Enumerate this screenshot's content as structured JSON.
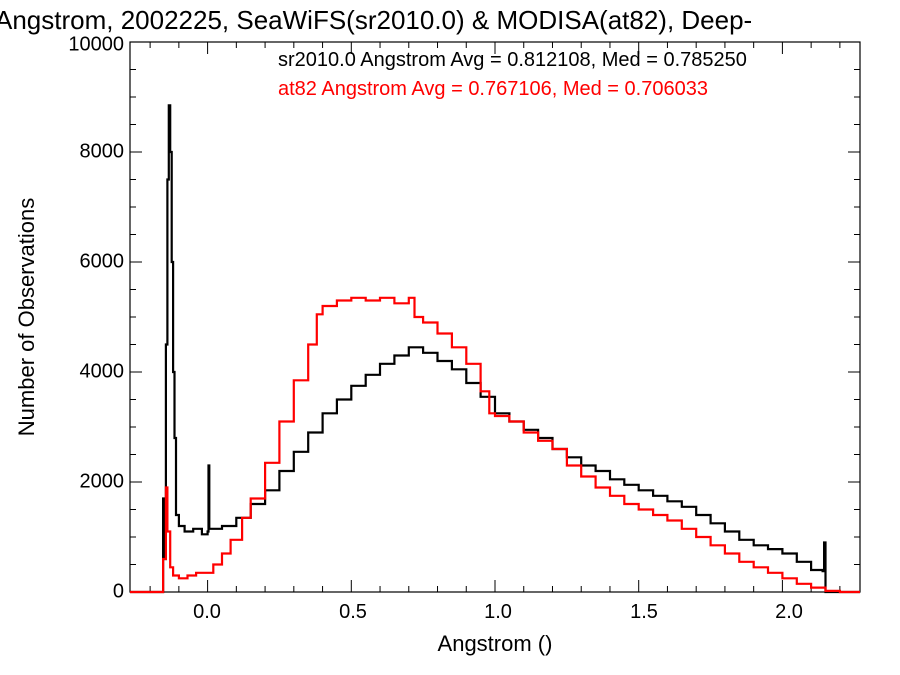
{
  "chart_data": {
    "type": "line",
    "title": "Angstrom, 2002225, SeaWiFS(sr2010.0) & MODISA(at82), Deep-",
    "xlabel": "Angstrom ()",
    "ylabel": "Number of Observations",
    "xlim": [
      -0.27,
      2.27
    ],
    "ylim": [
      0,
      10000
    ],
    "x_ticks": [
      "0.0",
      "0.5",
      "1.0",
      "1.5",
      "2.0"
    ],
    "y_ticks": [
      "0",
      "2000",
      "4000",
      "6000",
      "8000",
      "10000"
    ],
    "grid": false,
    "annotations": [
      {
        "text": "sr2010.0 Angstrom Avg = 0.812108, Med = 0.785250",
        "color": "#000000"
      },
      {
        "text": "at82 Angstrom Avg = 0.767106, Med = 0.706033",
        "color": "#ff0000"
      }
    ],
    "series": [
      {
        "color": "#000000",
        "points": [
          [
            -0.27,
            0
          ],
          [
            -0.16,
            0
          ],
          [
            -0.155,
            1700
          ],
          [
            -0.15,
            600
          ],
          [
            -0.145,
            4500
          ],
          [
            -0.14,
            7500
          ],
          [
            -0.135,
            8850
          ],
          [
            -0.13,
            8000
          ],
          [
            -0.125,
            6000
          ],
          [
            -0.12,
            4000
          ],
          [
            -0.115,
            2800
          ],
          [
            -0.11,
            1400
          ],
          [
            -0.1,
            1200
          ],
          [
            -0.08,
            1100
          ],
          [
            -0.05,
            1150
          ],
          [
            -0.02,
            1050
          ],
          [
            0.0,
            1100
          ],
          [
            0.003,
            2300
          ],
          [
            0.006,
            1150
          ],
          [
            0.05,
            1200
          ],
          [
            0.1,
            1350
          ],
          [
            0.15,
            1600
          ],
          [
            0.2,
            1850
          ],
          [
            0.25,
            2200
          ],
          [
            0.3,
            2550
          ],
          [
            0.35,
            2900
          ],
          [
            0.4,
            3250
          ],
          [
            0.45,
            3500
          ],
          [
            0.5,
            3750
          ],
          [
            0.55,
            3950
          ],
          [
            0.6,
            4150
          ],
          [
            0.65,
            4300
          ],
          [
            0.7,
            4450
          ],
          [
            0.75,
            4350
          ],
          [
            0.8,
            4200
          ],
          [
            0.85,
            4050
          ],
          [
            0.9,
            3800
          ],
          [
            0.95,
            3550
          ],
          [
            1.0,
            3250
          ],
          [
            1.05,
            3100
          ],
          [
            1.1,
            2950
          ],
          [
            1.15,
            2800
          ],
          [
            1.2,
            2600
          ],
          [
            1.25,
            2450
          ],
          [
            1.3,
            2300
          ],
          [
            1.35,
            2200
          ],
          [
            1.4,
            2050
          ],
          [
            1.45,
            1950
          ],
          [
            1.5,
            1850
          ],
          [
            1.55,
            1750
          ],
          [
            1.6,
            1650
          ],
          [
            1.65,
            1550
          ],
          [
            1.7,
            1400
          ],
          [
            1.75,
            1250
          ],
          [
            1.8,
            1100
          ],
          [
            1.85,
            950
          ],
          [
            1.9,
            850
          ],
          [
            1.95,
            780
          ],
          [
            2.0,
            700
          ],
          [
            2.05,
            550
          ],
          [
            2.1,
            400
          ],
          [
            2.14,
            380
          ],
          [
            2.145,
            900
          ],
          [
            2.15,
            0
          ],
          [
            2.27,
            0
          ]
        ]
      },
      {
        "color": "#ff0000",
        "points": [
          [
            -0.27,
            0
          ],
          [
            -0.16,
            0
          ],
          [
            -0.155,
            600
          ],
          [
            -0.145,
            1900
          ],
          [
            -0.14,
            1100
          ],
          [
            -0.13,
            450
          ],
          [
            -0.12,
            300
          ],
          [
            -0.1,
            250
          ],
          [
            -0.07,
            300
          ],
          [
            -0.04,
            350
          ],
          [
            -0.01,
            350
          ],
          [
            0.02,
            500
          ],
          [
            0.05,
            700
          ],
          [
            0.08,
            950
          ],
          [
            0.12,
            1350
          ],
          [
            0.15,
            1700
          ],
          [
            0.2,
            2350
          ],
          [
            0.25,
            3100
          ],
          [
            0.3,
            3850
          ],
          [
            0.35,
            4500
          ],
          [
            0.38,
            5050
          ],
          [
            0.4,
            5200
          ],
          [
            0.45,
            5300
          ],
          [
            0.5,
            5350
          ],
          [
            0.55,
            5300
          ],
          [
            0.6,
            5350
          ],
          [
            0.65,
            5250
          ],
          [
            0.7,
            5350
          ],
          [
            0.72,
            5000
          ],
          [
            0.75,
            4900
          ],
          [
            0.8,
            4700
          ],
          [
            0.85,
            4450
          ],
          [
            0.9,
            4150
          ],
          [
            0.95,
            3650
          ],
          [
            0.98,
            3250
          ],
          [
            1.0,
            3200
          ],
          [
            1.05,
            3100
          ],
          [
            1.1,
            2900
          ],
          [
            1.15,
            2750
          ],
          [
            1.2,
            2600
          ],
          [
            1.25,
            2300
          ],
          [
            1.3,
            2100
          ],
          [
            1.35,
            1900
          ],
          [
            1.4,
            1750
          ],
          [
            1.45,
            1600
          ],
          [
            1.5,
            1500
          ],
          [
            1.55,
            1400
          ],
          [
            1.6,
            1300
          ],
          [
            1.65,
            1150
          ],
          [
            1.7,
            1000
          ],
          [
            1.75,
            850
          ],
          [
            1.8,
            700
          ],
          [
            1.85,
            550
          ],
          [
            1.9,
            450
          ],
          [
            1.95,
            350
          ],
          [
            2.0,
            250
          ],
          [
            2.05,
            150
          ],
          [
            2.1,
            80
          ],
          [
            2.15,
            20
          ],
          [
            2.2,
            0
          ],
          [
            2.27,
            0
          ]
        ]
      }
    ]
  }
}
